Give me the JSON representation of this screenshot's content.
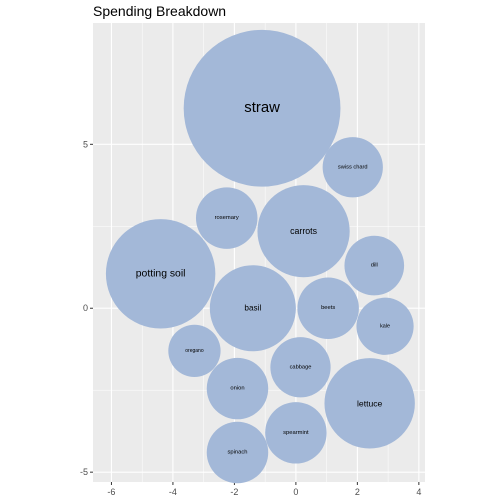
{
  "chart_data": {
    "type": "scatter",
    "subtype": "packed-bubble",
    "title": "Spending Breakdown",
    "xlabel": "",
    "ylabel": "",
    "xlim": [
      -6.6,
      4.2
    ],
    "ylim": [
      -5.3,
      8.7
    ],
    "x_ticks": [
      -6,
      -4,
      -2,
      0,
      2,
      4
    ],
    "y_ticks": [
      -5,
      0,
      5
    ],
    "grid": true,
    "panel_color": "#ebebeb",
    "grid_color": "#ffffff",
    "bubble_color": "#a3b8d8",
    "points": [
      {
        "label": "straw",
        "x": -1.1,
        "y": 6.1,
        "r": 2.55
      },
      {
        "label": "swiss chard",
        "x": 1.85,
        "y": 4.3,
        "r": 0.98
      },
      {
        "label": "rosemary",
        "x": -2.25,
        "y": 2.75,
        "r": 1.0
      },
      {
        "label": "carrots",
        "x": 0.25,
        "y": 2.35,
        "r": 1.5
      },
      {
        "label": "potting soil",
        "x": -4.4,
        "y": 1.05,
        "r": 1.78
      },
      {
        "label": "dill",
        "x": 2.55,
        "y": 1.3,
        "r": 0.97
      },
      {
        "label": "basil",
        "x": -1.4,
        "y": 0.0,
        "r": 1.4
      },
      {
        "label": "beets",
        "x": 1.05,
        "y": 0.0,
        "r": 1.0
      },
      {
        "label": "kale",
        "x": 2.9,
        "y": -0.55,
        "r": 0.93
      },
      {
        "label": "oregano",
        "x": -3.3,
        "y": -1.3,
        "r": 0.85
      },
      {
        "label": "cabbage",
        "x": 0.15,
        "y": -1.8,
        "r": 0.98
      },
      {
        "label": "onion",
        "x": -1.9,
        "y": -2.45,
        "r": 1.0
      },
      {
        "label": "lettuce",
        "x": 2.4,
        "y": -2.9,
        "r": 1.47
      },
      {
        "label": "spearmint",
        "x": 0.0,
        "y": -3.8,
        "r": 1.0
      },
      {
        "label": "spinach",
        "x": -1.9,
        "y": -4.4,
        "r": 1.0
      }
    ]
  }
}
